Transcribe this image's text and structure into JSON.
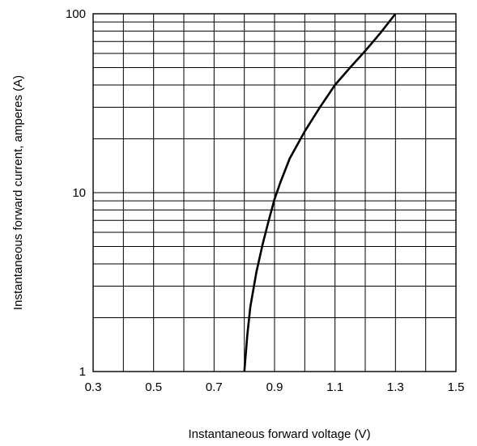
{
  "chart_data": {
    "type": "line",
    "title": "",
    "xlabel": "Instantaneous forward voltage (V)",
    "ylabel": "Instantaneous forward current, amperes (A)",
    "xlim": [
      0.3,
      1.5
    ],
    "ylim": [
      1,
      100
    ],
    "y_scale": "log",
    "grid": true,
    "x_ticks": [
      0.3,
      0.5,
      0.7,
      0.9,
      1.1,
      1.3,
      1.5
    ],
    "x_tick_labels": [
      "0.3",
      "0.5",
      "0.7",
      "0.9",
      "1.1",
      "1.3",
      "1.5"
    ],
    "x_minor_gridlines": [
      0.4,
      0.6,
      0.8,
      1.0,
      1.2,
      1.4
    ],
    "y_ticks": [
      1,
      10,
      100
    ],
    "y_tick_labels": [
      "1",
      "10",
      "100"
    ],
    "series": [
      {
        "color": "#000000",
        "x": [
          0.8,
          0.81,
          0.82,
          0.84,
          0.86,
          0.88,
          0.9,
          0.92,
          0.95,
          1.0,
          1.05,
          1.1,
          1.15,
          1.2,
          1.25,
          1.3
        ],
        "y": [
          1.0,
          1.6,
          2.3,
          3.6,
          5.1,
          6.9,
          9.2,
          11.5,
          15.5,
          22,
          30,
          40,
          50,
          62,
          78,
          100
        ]
      }
    ]
  }
}
